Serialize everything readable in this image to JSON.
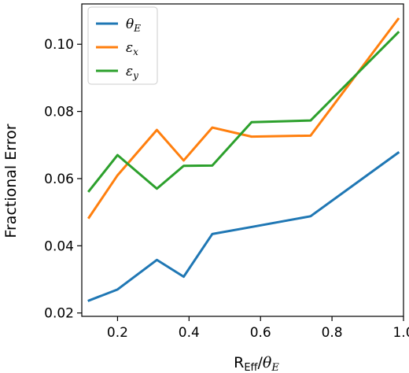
{
  "chart_data": {
    "type": "line",
    "title": "",
    "xlabel_main": "R",
    "xlabel_sub": "Eff",
    "xlabel_slash": "/",
    "xlabel_theta": "θ",
    "xlabel_theta_sub": "E",
    "ylabel": "Fractional Error",
    "xlim": [
      0.1,
      1.0
    ],
    "ylim": [
      0.019,
      0.112
    ],
    "xticks": [
      0.2,
      0.4,
      0.6,
      0.8,
      1.0
    ],
    "xtick_labels": [
      "0.2",
      "0.4",
      "0.6",
      "0.8",
      "1.0"
    ],
    "yticks": [
      0.02,
      0.04,
      0.06,
      0.08,
      0.1
    ],
    "ytick_labels": [
      "0.02",
      "0.04",
      "0.06",
      "0.08",
      "0.10"
    ],
    "grid": false,
    "legend_position": "top-left",
    "series": [
      {
        "name": "θE",
        "legend_main": "θ",
        "legend_sub": "E",
        "color": "#1f77b4",
        "x": [
          0.12,
          0.2,
          0.31,
          0.385,
          0.465,
          0.575,
          0.74,
          0.985
        ],
        "y": [
          0.0237,
          0.027,
          0.0358,
          0.0308,
          0.0435,
          0.0456,
          0.0488,
          0.0677
        ]
      },
      {
        "name": "εx",
        "legend_main": "ε",
        "legend_sub": "x",
        "color": "#ff7f0e",
        "x": [
          0.12,
          0.2,
          0.31,
          0.385,
          0.465,
          0.575,
          0.74,
          0.985
        ],
        "y": [
          0.0484,
          0.061,
          0.0745,
          0.0654,
          0.0752,
          0.0725,
          0.0728,
          0.1075
        ]
      },
      {
        "name": "εy",
        "legend_main": "ε",
        "legend_sub": "y",
        "color": "#2ca02c",
        "x": [
          0.12,
          0.2,
          0.31,
          0.385,
          0.465,
          0.575,
          0.74,
          0.985
        ],
        "y": [
          0.0563,
          0.067,
          0.057,
          0.0638,
          0.0639,
          0.0768,
          0.0773,
          0.1035
        ]
      }
    ]
  }
}
